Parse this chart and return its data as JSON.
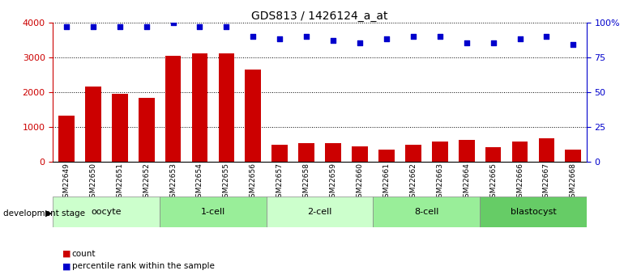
{
  "title": "GDS813 / 1426124_a_at",
  "samples": [
    "GSM22649",
    "GSM22650",
    "GSM22651",
    "GSM22652",
    "GSM22653",
    "GSM22654",
    "GSM22655",
    "GSM22656",
    "GSM22657",
    "GSM22658",
    "GSM22659",
    "GSM22660",
    "GSM22661",
    "GSM22662",
    "GSM22663",
    "GSM22664",
    "GSM22665",
    "GSM22666",
    "GSM22667",
    "GSM22668"
  ],
  "counts": [
    1320,
    2150,
    1960,
    1840,
    3050,
    3100,
    3100,
    2650,
    480,
    530,
    540,
    450,
    360,
    490,
    590,
    620,
    430,
    580,
    680,
    340
  ],
  "percentiles": [
    97,
    97,
    97,
    97,
    100,
    97,
    97,
    90,
    88,
    90,
    87,
    85,
    88,
    90,
    90,
    85,
    85,
    88,
    90,
    84
  ],
  "bar_color": "#cc0000",
  "dot_color": "#0000cc",
  "bg_color": "#ffffff",
  "left_axis_color": "#cc0000",
  "right_axis_color": "#0000cc",
  "ylim_left": [
    0,
    4000
  ],
  "ylim_right": [
    0,
    100
  ],
  "yticks_left": [
    0,
    1000,
    2000,
    3000,
    4000
  ],
  "yticks_right": [
    0,
    25,
    50,
    75,
    100
  ],
  "stages": [
    {
      "label": "oocyte",
      "start": 0,
      "end": 4,
      "color": "#ccffcc"
    },
    {
      "label": "1-cell",
      "start": 4,
      "end": 8,
      "color": "#99ee99"
    },
    {
      "label": "2-cell",
      "start": 8,
      "end": 12,
      "color": "#ccffcc"
    },
    {
      "label": "8-cell",
      "start": 12,
      "end": 16,
      "color": "#99ee99"
    },
    {
      "label": "blastocyst",
      "start": 16,
      "end": 20,
      "color": "#66cc66"
    }
  ],
  "legend_count_label": "count",
  "legend_pct_label": "percentile rank within the sample",
  "dev_stage_label": "development stage",
  "xtick_bg": "#cccccc",
  "grid_color": "#000000"
}
